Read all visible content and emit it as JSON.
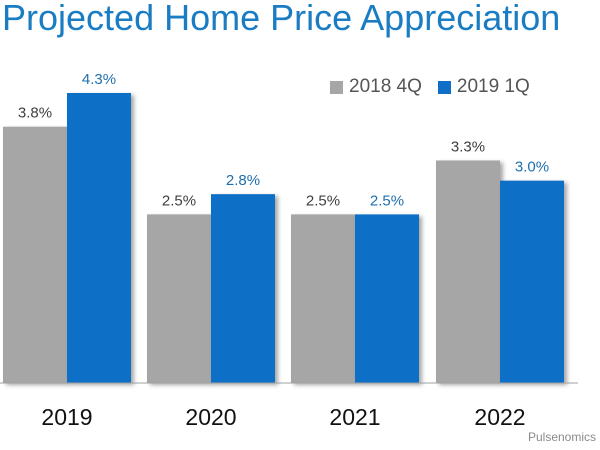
{
  "chart_data": {
    "type": "bar",
    "title": "Projected Home Price Appreciation",
    "categories": [
      "2019",
      "2020",
      "2021",
      "2022"
    ],
    "series": [
      {
        "name": "2018 4Q",
        "color": "#a6a6a6",
        "label_color": "#404040",
        "values": [
          3.8,
          2.5,
          2.5,
          3.3
        ],
        "labels": [
          "3.8%",
          "2.5%",
          "2.5%",
          "3.3%"
        ]
      },
      {
        "name": "2019 1Q",
        "color": "#0f6fc6",
        "label_color": "#1f6fae",
        "values": [
          4.3,
          2.8,
          2.5,
          3.0
        ],
        "labels": [
          "4.3%",
          "2.8%",
          "2.5%",
          "3.0%"
        ]
      }
    ],
    "ylim": [
      0,
      4.3
    ],
    "grid": false,
    "legend_position": "top-right",
    "source": "Pulsenomics"
  }
}
